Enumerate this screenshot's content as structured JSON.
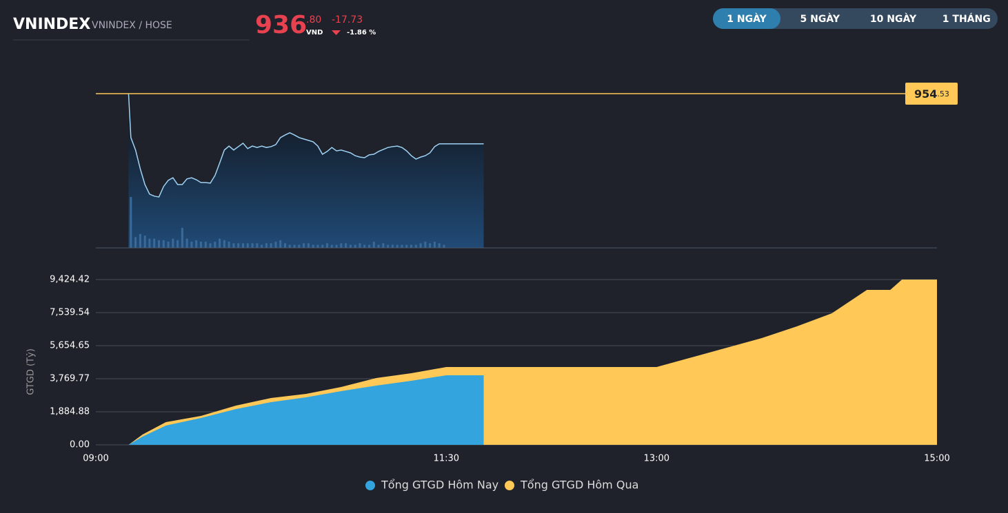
{
  "header": {
    "symbol": "VNINDEX",
    "exchange": "VNINDEX / HOSE",
    "price_integer": "936",
    "price_decimal": ".80",
    "currency": "VND",
    "change": "-17.73",
    "change_percent": "-1.86 %"
  },
  "tabs": {
    "items": [
      "1 NGÀY",
      "5 NGÀY",
      "10 NGÀY",
      "1 THÁNG"
    ],
    "active": 0
  },
  "chart_data": [
    {
      "type": "line",
      "color": "#9fd3f5",
      "xlim": [
        "09:00",
        "15:00"
      ],
      "ylim": [
        900,
        954.53
      ],
      "reference_line": {
        "value": 954.53,
        "label": "954.53",
        "color": "#ffc857"
      },
      "x": [
        "09:14",
        "09:15",
        "09:17",
        "09:19",
        "09:21",
        "09:23",
        "09:25",
        "09:27",
        "09:29",
        "09:31",
        "09:33",
        "09:35",
        "09:37",
        "09:39",
        "09:41",
        "09:43",
        "09:45",
        "09:47",
        "09:49",
        "09:51",
        "09:53",
        "09:55",
        "09:57",
        "09:59",
        "10:01",
        "10:03",
        "10:05",
        "10:07",
        "10:09",
        "10:11",
        "10:13",
        "10:15",
        "10:17",
        "10:19",
        "10:21",
        "10:23",
        "10:25",
        "10:27",
        "10:29",
        "10:31",
        "10:33",
        "10:35",
        "10:37",
        "10:39",
        "10:41",
        "10:43",
        "10:45",
        "10:47",
        "10:49",
        "10:51",
        "10:53",
        "10:55",
        "10:57",
        "10:59",
        "11:01",
        "11:03",
        "11:05",
        "11:07",
        "11:09",
        "11:11",
        "11:13",
        "11:15",
        "11:17",
        "11:19",
        "11:21",
        "11:23",
        "11:25",
        "11:27",
        "11:29",
        "11:46"
      ],
      "values": [
        954.5,
        939.0,
        934.6,
        928.0,
        922.4,
        919.0,
        918.3,
        918.0,
        921.7,
        923.9,
        924.8,
        922.4,
        922.4,
        924.4,
        924.8,
        924.1,
        923.1,
        923.1,
        922.9,
        925.6,
        930.0,
        934.6,
        936.0,
        934.6,
        935.8,
        937.0,
        935.1,
        936.0,
        935.5,
        936.0,
        935.5,
        935.8,
        936.5,
        939.0,
        939.9,
        940.7,
        939.9,
        939.0,
        938.5,
        938.0,
        937.5,
        936.0,
        933.1,
        934.1,
        935.5,
        934.3,
        934.6,
        934.1,
        933.6,
        932.6,
        932.1,
        931.9,
        932.9,
        933.1,
        934.1,
        934.8,
        935.5,
        935.8,
        936.0,
        935.5,
        934.3,
        932.6,
        931.4,
        932.1,
        932.6,
        933.6,
        935.8,
        936.8,
        936.8,
        936.8
      ],
      "volume_color": "#3a6a9a",
      "volume_lim": [
        0,
        100
      ],
      "volume": [
        null,
        33,
        7,
        9,
        8,
        6,
        6,
        5,
        5,
        4,
        6,
        5,
        13,
        6,
        4,
        5,
        4,
        4,
        3,
        4,
        6,
        5,
        4,
        3,
        3,
        3,
        3,
        3,
        3,
        2,
        3,
        3,
        4,
        5,
        3,
        2,
        2,
        2,
        3,
        3,
        2,
        2,
        2,
        3,
        2,
        2,
        3,
        3,
        2,
        2,
        3,
        2,
        2,
        4,
        2,
        3,
        2,
        2,
        2,
        2,
        2,
        2,
        2,
        3,
        4,
        3,
        4,
        3,
        2,
        null
      ]
    },
    {
      "type": "area",
      "ylabel": "GTGD (Tỷ)",
      "grid": true,
      "xlim": [
        "09:00",
        "15:00"
      ],
      "xticks": [
        "09:00",
        "11:30",
        "13:00",
        "15:00"
      ],
      "ylim": [
        0,
        9424.42
      ],
      "yticks": [
        {
          "value": 0,
          "label": "0.00"
        },
        {
          "value": 1884.88,
          "label": "1,884.88"
        },
        {
          "value": 3769.77,
          "label": "3,769.77"
        },
        {
          "value": 5654.65,
          "label": "5,654.65"
        },
        {
          "value": 7539.54,
          "label": "7,539.54"
        },
        {
          "value": 9424.42,
          "label": "9,424.42"
        }
      ],
      "x": [
        "09:14",
        "09:20",
        "09:30",
        "09:45",
        "10:00",
        "10:15",
        "10:30",
        "10:45",
        "11:00",
        "11:15",
        "11:30",
        "11:46",
        "13:00",
        "13:15",
        "13:30",
        "13:45",
        "14:00",
        "14:15",
        "14:30",
        "14:40",
        "14:45",
        "15:00"
      ],
      "series": [
        {
          "name": "Tổng GTGD Hôm Nay",
          "color": "#33a4dd",
          "values": [
            0,
            471,
            1100,
            1532,
            2042,
            2435,
            2710,
            3063,
            3377,
            3652,
            3966,
            3966,
            null,
            null,
            null,
            null,
            null,
            null,
            null,
            null,
            null,
            null
          ]
        },
        {
          "name": "Tổng GTGD Hôm Qua",
          "color": "#ffc857",
          "values": [
            0,
            589,
            1296,
            1649,
            2238,
            2670,
            2906,
            3299,
            3809,
            4084,
            4437,
            4437,
            4437,
            4987,
            5537,
            6087,
            6755,
            7500,
            8836,
            8836,
            9424.42,
            9424.42
          ]
        }
      ]
    }
  ]
}
